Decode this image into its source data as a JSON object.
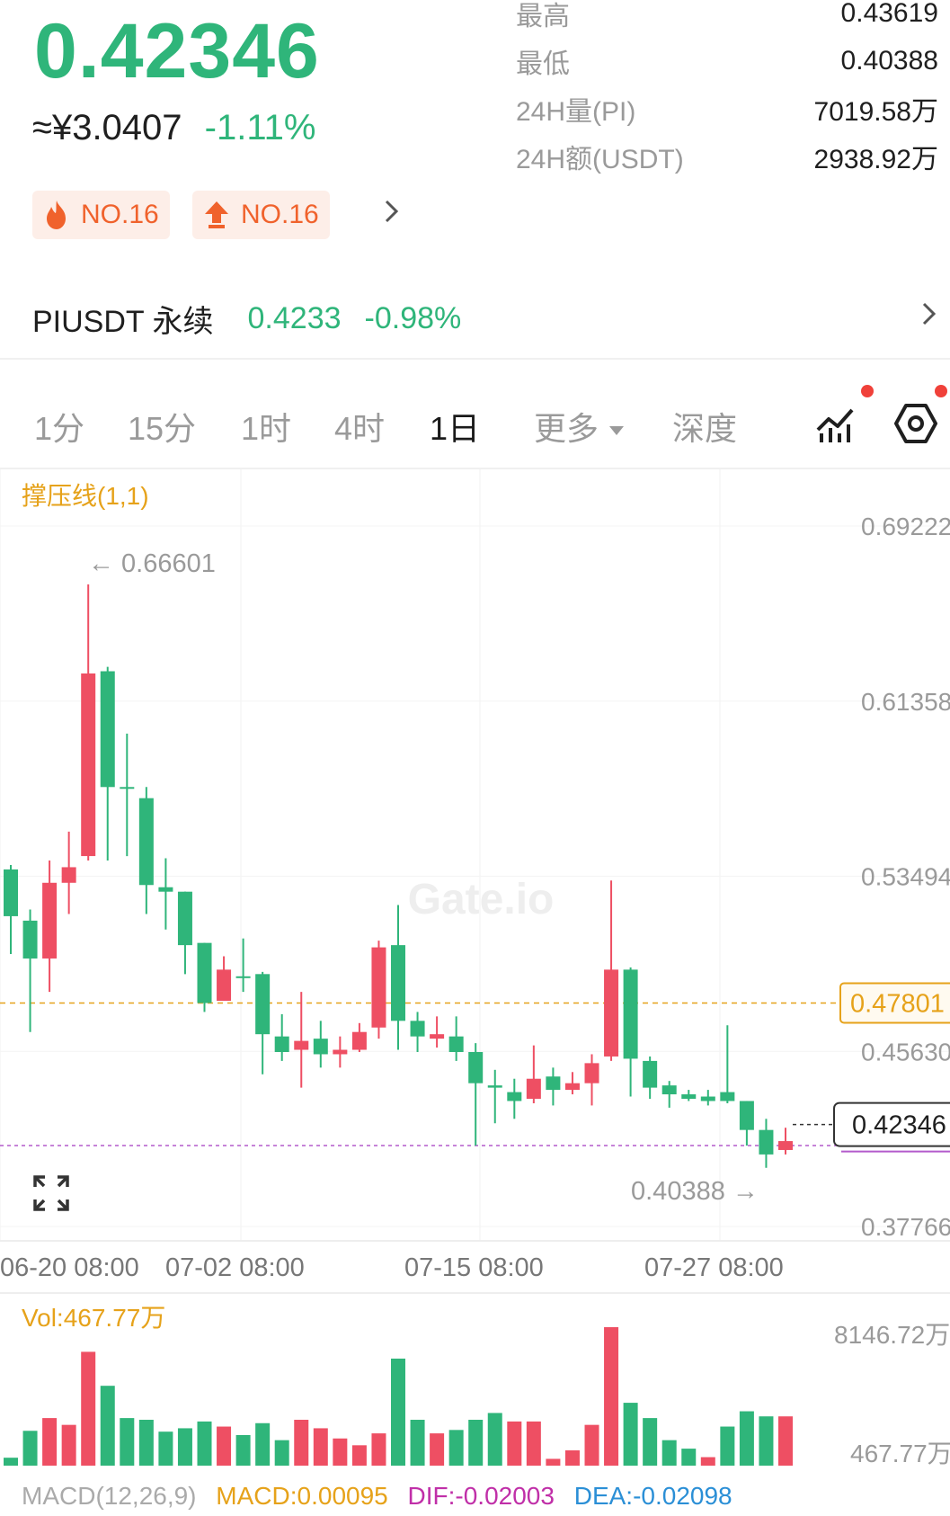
{
  "header": {
    "price": "0.42346",
    "cny_price": "≈¥3.0407",
    "change_pct": "-1.11%",
    "stats": [
      {
        "label": "最高",
        "value": "0.43619"
      },
      {
        "label": "最低",
        "value": "0.40388"
      },
      {
        "label": "24H量(PI)",
        "value": "7019.58万"
      },
      {
        "label": "24H额(USDT)",
        "value": "2938.92万"
      }
    ],
    "badges": [
      {
        "icon": "fire-icon",
        "label": "NO.16"
      },
      {
        "icon": "up-arrow-icon",
        "label": "NO.16"
      }
    ]
  },
  "perpetual": {
    "name": "PIUSDT 永续",
    "price": "0.4233",
    "change": "-0.98%"
  },
  "tabs": {
    "items": [
      "1分",
      "15分",
      "1时",
      "4时",
      "1日",
      "更多",
      "深度"
    ],
    "active": "1日"
  },
  "colors": {
    "up": "#2fb57a",
    "down": "#ee4f63",
    "accent": "#e6a21a",
    "alert": "#f0413a"
  },
  "chart_data": {
    "type": "candlestick",
    "indicator_label": "撑压线(1,1)",
    "watermark": "Gate.io",
    "y_ticks": [
      "0.69222",
      "0.61358",
      "0.53494",
      "0.45630",
      "0.37766"
    ],
    "x_ticks": [
      "06-20 08:00",
      "07-02 08:00",
      "07-15 08:00",
      "07-27 08:00"
    ],
    "high_marker": "← 0.66601",
    "low_marker": "0.40388 →",
    "support_level": "0.47801",
    "current_price": "0.42346",
    "candles": [
      {
        "o": 0.538,
        "h": 0.54,
        "l": 0.5,
        "c": 0.517
      },
      {
        "o": 0.515,
        "h": 0.52,
        "l": 0.465,
        "c": 0.498
      },
      {
        "o": 0.498,
        "h": 0.542,
        "l": 0.483,
        "c": 0.532
      },
      {
        "o": 0.532,
        "h": 0.555,
        "l": 0.518,
        "c": 0.539
      },
      {
        "o": 0.544,
        "h": 0.666,
        "l": 0.542,
        "c": 0.626
      },
      {
        "o": 0.627,
        "h": 0.629,
        "l": 0.542,
        "c": 0.575
      },
      {
        "o": 0.575,
        "h": 0.599,
        "l": 0.544,
        "c": 0.575
      },
      {
        "o": 0.57,
        "h": 0.575,
        "l": 0.518,
        "c": 0.531
      },
      {
        "o": 0.53,
        "h": 0.543,
        "l": 0.511,
        "c": 0.528
      },
      {
        "o": 0.528,
        "h": 0.528,
        "l": 0.491,
        "c": 0.504
      },
      {
        "o": 0.505,
        "h": 0.505,
        "l": 0.474,
        "c": 0.478
      },
      {
        "o": 0.479,
        "h": 0.499,
        "l": 0.479,
        "c": 0.493
      },
      {
        "o": 0.49,
        "h": 0.507,
        "l": 0.483,
        "c": 0.49
      },
      {
        "o": 0.491,
        "h": 0.492,
        "l": 0.446,
        "c": 0.464
      },
      {
        "o": 0.463,
        "h": 0.473,
        "l": 0.452,
        "c": 0.456
      },
      {
        "o": 0.457,
        "h": 0.483,
        "l": 0.44,
        "c": 0.461
      },
      {
        "o": 0.462,
        "h": 0.47,
        "l": 0.449,
        "c": 0.455
      },
      {
        "o": 0.455,
        "h": 0.463,
        "l": 0.449,
        "c": 0.457
      },
      {
        "o": 0.457,
        "h": 0.469,
        "l": 0.456,
        "c": 0.465
      },
      {
        "o": 0.467,
        "h": 0.506,
        "l": 0.462,
        "c": 0.503
      },
      {
        "o": 0.504,
        "h": 0.522,
        "l": 0.457,
        "c": 0.47
      },
      {
        "o": 0.47,
        "h": 0.474,
        "l": 0.456,
        "c": 0.463
      },
      {
        "o": 0.462,
        "h": 0.472,
        "l": 0.458,
        "c": 0.464
      },
      {
        "o": 0.463,
        "h": 0.472,
        "l": 0.452,
        "c": 0.456
      },
      {
        "o": 0.456,
        "h": 0.46,
        "l": 0.414,
        "c": 0.442
      },
      {
        "o": 0.441,
        "h": 0.448,
        "l": 0.424,
        "c": 0.44
      },
      {
        "o": 0.438,
        "h": 0.444,
        "l": 0.426,
        "c": 0.434
      },
      {
        "o": 0.435,
        "h": 0.459,
        "l": 0.433,
        "c": 0.444
      },
      {
        "o": 0.445,
        "h": 0.449,
        "l": 0.432,
        "c": 0.439
      },
      {
        "o": 0.439,
        "h": 0.447,
        "l": 0.437,
        "c": 0.442
      },
      {
        "o": 0.442,
        "h": 0.455,
        "l": 0.432,
        "c": 0.451
      },
      {
        "o": 0.454,
        "h": 0.533,
        "l": 0.452,
        "c": 0.493
      },
      {
        "o": 0.493,
        "h": 0.494,
        "l": 0.436,
        "c": 0.453
      },
      {
        "o": 0.452,
        "h": 0.454,
        "l": 0.435,
        "c": 0.44
      },
      {
        "o": 0.441,
        "h": 0.443,
        "l": 0.431,
        "c": 0.437
      },
      {
        "o": 0.437,
        "h": 0.439,
        "l": 0.434,
        "c": 0.435
      },
      {
        "o": 0.436,
        "h": 0.439,
        "l": 0.432,
        "c": 0.434
      },
      {
        "o": 0.438,
        "h": 0.468,
        "l": 0.433,
        "c": 0.434
      },
      {
        "o": 0.434,
        "h": 0.434,
        "l": 0.414,
        "c": 0.421
      },
      {
        "o": 0.421,
        "h": 0.426,
        "l": 0.404,
        "c": 0.41
      },
      {
        "o": 0.412,
        "h": 0.422,
        "l": 0.41,
        "c": 0.416
      }
    ],
    "volume": {
      "label": "Vol:467.77万",
      "y_ticks": [
        "8146.72万",
        "467.77万"
      ],
      "values": [
        467,
        2050,
        2800,
        2400,
        6700,
        4700,
        2800,
        2700,
        2000,
        2200,
        2600,
        2300,
        1800,
        2500,
        1500,
        2700,
        2200,
        1600,
        1200,
        1900,
        6300,
        2700,
        1900,
        2100,
        2700,
        3100,
        2600,
        2600,
        400,
        900,
        2400,
        8150,
        3700,
        2800,
        1500,
        1000,
        500,
        2300,
        3200,
        2900,
        2900
      ],
      "up": [
        true,
        true,
        false,
        false,
        false,
        true,
        true,
        true,
        true,
        true,
        true,
        false,
        true,
        true,
        true,
        false,
        false,
        false,
        false,
        false,
        true,
        true,
        false,
        true,
        true,
        true,
        false,
        false,
        false,
        false,
        false,
        false,
        true,
        true,
        true,
        true,
        false,
        true,
        true,
        true,
        false
      ]
    },
    "macd": {
      "label": "MACD(12,26,9)",
      "macd": "MACD:0.00095",
      "dif": "DIF:-0.02003",
      "dea": "DEA:-0.02098"
    }
  }
}
